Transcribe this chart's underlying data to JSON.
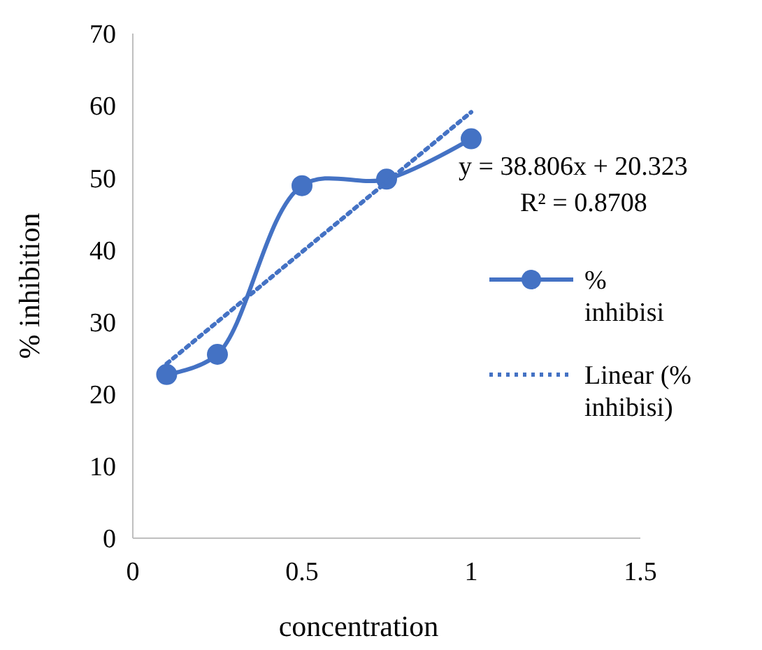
{
  "chart_data": {
    "type": "line",
    "xlabel": "concentration",
    "ylabel": "% inhibition",
    "xlim": [
      0,
      1.5
    ],
    "xticks": [
      0,
      0.5,
      1,
      1.5
    ],
    "ylim": [
      0,
      70
    ],
    "yticks": [
      0,
      10,
      20,
      30,
      40,
      50,
      60,
      70
    ],
    "grid": false,
    "legend": "right",
    "series": [
      {
        "name": "% inhibisi",
        "color": "#4472c4",
        "x": [
          0.1,
          0.25,
          0.5,
          0.75,
          1
        ],
        "values": [
          22.7,
          25.5,
          48.9,
          49.8,
          55.4
        ],
        "marker": "circle",
        "line_style": "solid"
      },
      {
        "name": "Linear (% inhibisi)",
        "color": "#4472c4",
        "x": [
          0.1,
          1
        ],
        "values": [
          24.2,
          59.1
        ],
        "marker": "none",
        "line_style": "dotted"
      }
    ],
    "annotations": [
      "y = 38.806x + 20.323",
      "R² = 0.8708"
    ]
  }
}
